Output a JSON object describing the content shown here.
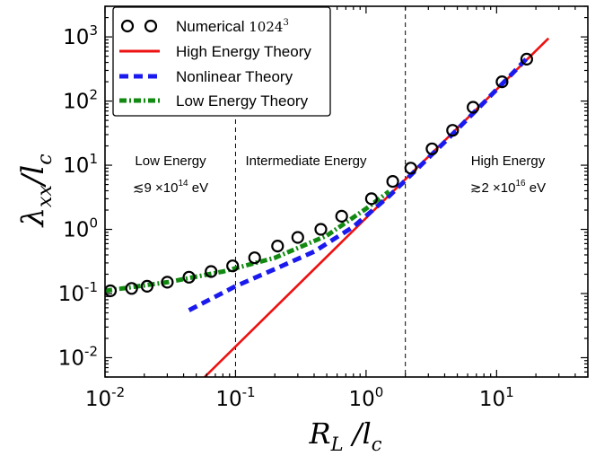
{
  "chart_data": {
    "type": "line",
    "xscale": "log",
    "yscale": "log",
    "xlim": [
      0.01,
      50
    ],
    "ylim": [
      0.005,
      3000
    ],
    "x_ticks": [
      {
        "base": "10",
        "exp": "-2",
        "value": 0.01
      },
      {
        "base": "10",
        "exp": "-1",
        "value": 0.1
      },
      {
        "base": "10",
        "exp": "0",
        "value": 1
      },
      {
        "base": "10",
        "exp": "1",
        "value": 10
      }
    ],
    "y_ticks": [
      {
        "base": "10",
        "exp": "-2",
        "value": 0.01
      },
      {
        "base": "10",
        "exp": "-1",
        "value": 0.1
      },
      {
        "base": "10",
        "exp": "0",
        "value": 1
      },
      {
        "base": "10",
        "exp": "1",
        "value": 10
      },
      {
        "base": "10",
        "exp": "2",
        "value": 100
      },
      {
        "base": "10",
        "exp": "3",
        "value": 1000
      }
    ],
    "xlabel": {
      "main": "R",
      "sub": "L",
      "tail": " /l",
      "tail_sub": "c"
    },
    "ylabel": {
      "main": "λ",
      "sub": "xx",
      "tail": "/l",
      "tail_sub": "c"
    },
    "legend_placement": "top-left",
    "series": [
      {
        "name": "Numerical",
        "name_suffix": "1024",
        "name_sup": "3",
        "style": "markers",
        "color": "#000000",
        "x": [
          0.011,
          0.016,
          0.021,
          0.03,
          0.044,
          0.065,
          0.095,
          0.14,
          0.21,
          0.3,
          0.45,
          0.65,
          1.1,
          1.6,
          2.2,
          3.2,
          4.6,
          6.6,
          11,
          17
        ],
        "y": [
          0.11,
          0.12,
          0.13,
          0.15,
          0.18,
          0.22,
          0.27,
          0.36,
          0.55,
          0.75,
          1.0,
          1.6,
          3.0,
          5.6,
          9.0,
          18,
          35,
          80,
          200,
          450
        ]
      },
      {
        "name": "High Energy Theory",
        "style": "solid",
        "color": "#ee1111",
        "x": [
          0.058,
          25
        ],
        "y": [
          0.005,
          950
        ]
      },
      {
        "name": "Nonlinear Theory",
        "style": "dashed",
        "color": "#1a1aee",
        "x": [
          0.044,
          0.1,
          0.2,
          0.4,
          0.8,
          1.5,
          2.2,
          4,
          8,
          13,
          18
        ],
        "y": [
          0.055,
          0.13,
          0.24,
          0.45,
          1.1,
          3.3,
          7.0,
          23,
          95,
          260,
          520
        ]
      },
      {
        "name": "Low Energy Theory",
        "style": "dotted",
        "color": "#128a12",
        "x": [
          0.01,
          0.03,
          0.08,
          0.2,
          0.5,
          1.0,
          1.5
        ],
        "y": [
          0.11,
          0.15,
          0.22,
          0.36,
          0.8,
          2.1,
          3.9
        ]
      }
    ],
    "region_boundaries": [
      0.1,
      2.0
    ],
    "regions": [
      {
        "label": "Low Energy",
        "energy_prefix": "≲9 ×10",
        "energy_exp": "14",
        "energy_unit": "  eV"
      },
      {
        "label": "Intermediate Energy"
      },
      {
        "label": "High Energy",
        "energy_prefix": "≳2 ×10",
        "energy_exp": "16",
        "energy_unit": "  eV"
      }
    ]
  }
}
